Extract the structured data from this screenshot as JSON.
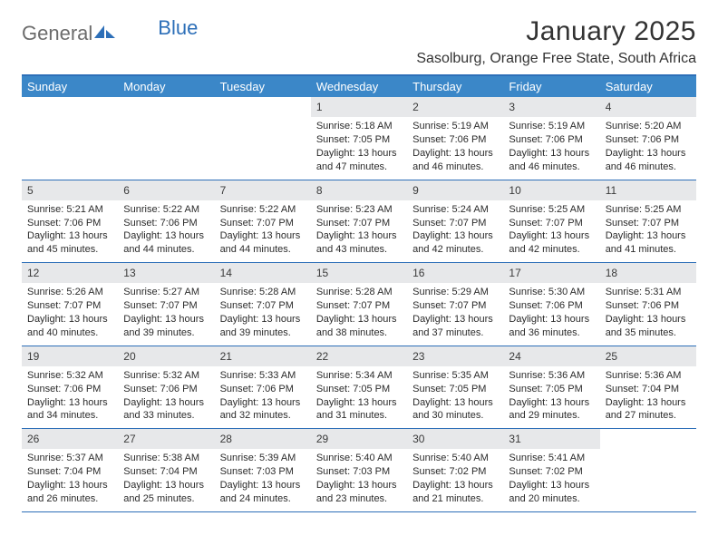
{
  "brand": {
    "textA": "General",
    "textB": "Blue"
  },
  "title": "January 2025",
  "location": "Sasolburg, Orange Free State, South Africa",
  "colors": {
    "header_bar": "#3b87c8",
    "rule": "#2d6fb8",
    "daynum_bg": "#e7e8ea",
    "text": "#333333",
    "logo_gray": "#6c6c6c",
    "logo_blue": "#2d6fb8"
  },
  "dow": [
    "Sunday",
    "Monday",
    "Tuesday",
    "Wednesday",
    "Thursday",
    "Friday",
    "Saturday"
  ],
  "weeks": [
    [
      {
        "n": "",
        "sr": "",
        "ss": "",
        "dl": ""
      },
      {
        "n": "",
        "sr": "",
        "ss": "",
        "dl": ""
      },
      {
        "n": "",
        "sr": "",
        "ss": "",
        "dl": ""
      },
      {
        "n": "1",
        "sr": "Sunrise: 5:18 AM",
        "ss": "Sunset: 7:05 PM",
        "dl": "Daylight: 13 hours and 47 minutes."
      },
      {
        "n": "2",
        "sr": "Sunrise: 5:19 AM",
        "ss": "Sunset: 7:06 PM",
        "dl": "Daylight: 13 hours and 46 minutes."
      },
      {
        "n": "3",
        "sr": "Sunrise: 5:19 AM",
        "ss": "Sunset: 7:06 PM",
        "dl": "Daylight: 13 hours and 46 minutes."
      },
      {
        "n": "4",
        "sr": "Sunrise: 5:20 AM",
        "ss": "Sunset: 7:06 PM",
        "dl": "Daylight: 13 hours and 46 minutes."
      }
    ],
    [
      {
        "n": "5",
        "sr": "Sunrise: 5:21 AM",
        "ss": "Sunset: 7:06 PM",
        "dl": "Daylight: 13 hours and 45 minutes."
      },
      {
        "n": "6",
        "sr": "Sunrise: 5:22 AM",
        "ss": "Sunset: 7:06 PM",
        "dl": "Daylight: 13 hours and 44 minutes."
      },
      {
        "n": "7",
        "sr": "Sunrise: 5:22 AM",
        "ss": "Sunset: 7:07 PM",
        "dl": "Daylight: 13 hours and 44 minutes."
      },
      {
        "n": "8",
        "sr": "Sunrise: 5:23 AM",
        "ss": "Sunset: 7:07 PM",
        "dl": "Daylight: 13 hours and 43 minutes."
      },
      {
        "n": "9",
        "sr": "Sunrise: 5:24 AM",
        "ss": "Sunset: 7:07 PM",
        "dl": "Daylight: 13 hours and 42 minutes."
      },
      {
        "n": "10",
        "sr": "Sunrise: 5:25 AM",
        "ss": "Sunset: 7:07 PM",
        "dl": "Daylight: 13 hours and 42 minutes."
      },
      {
        "n": "11",
        "sr": "Sunrise: 5:25 AM",
        "ss": "Sunset: 7:07 PM",
        "dl": "Daylight: 13 hours and 41 minutes."
      }
    ],
    [
      {
        "n": "12",
        "sr": "Sunrise: 5:26 AM",
        "ss": "Sunset: 7:07 PM",
        "dl": "Daylight: 13 hours and 40 minutes."
      },
      {
        "n": "13",
        "sr": "Sunrise: 5:27 AM",
        "ss": "Sunset: 7:07 PM",
        "dl": "Daylight: 13 hours and 39 minutes."
      },
      {
        "n": "14",
        "sr": "Sunrise: 5:28 AM",
        "ss": "Sunset: 7:07 PM",
        "dl": "Daylight: 13 hours and 39 minutes."
      },
      {
        "n": "15",
        "sr": "Sunrise: 5:28 AM",
        "ss": "Sunset: 7:07 PM",
        "dl": "Daylight: 13 hours and 38 minutes."
      },
      {
        "n": "16",
        "sr": "Sunrise: 5:29 AM",
        "ss": "Sunset: 7:07 PM",
        "dl": "Daylight: 13 hours and 37 minutes."
      },
      {
        "n": "17",
        "sr": "Sunrise: 5:30 AM",
        "ss": "Sunset: 7:06 PM",
        "dl": "Daylight: 13 hours and 36 minutes."
      },
      {
        "n": "18",
        "sr": "Sunrise: 5:31 AM",
        "ss": "Sunset: 7:06 PM",
        "dl": "Daylight: 13 hours and 35 minutes."
      }
    ],
    [
      {
        "n": "19",
        "sr": "Sunrise: 5:32 AM",
        "ss": "Sunset: 7:06 PM",
        "dl": "Daylight: 13 hours and 34 minutes."
      },
      {
        "n": "20",
        "sr": "Sunrise: 5:32 AM",
        "ss": "Sunset: 7:06 PM",
        "dl": "Daylight: 13 hours and 33 minutes."
      },
      {
        "n": "21",
        "sr": "Sunrise: 5:33 AM",
        "ss": "Sunset: 7:06 PM",
        "dl": "Daylight: 13 hours and 32 minutes."
      },
      {
        "n": "22",
        "sr": "Sunrise: 5:34 AM",
        "ss": "Sunset: 7:05 PM",
        "dl": "Daylight: 13 hours and 31 minutes."
      },
      {
        "n": "23",
        "sr": "Sunrise: 5:35 AM",
        "ss": "Sunset: 7:05 PM",
        "dl": "Daylight: 13 hours and 30 minutes."
      },
      {
        "n": "24",
        "sr": "Sunrise: 5:36 AM",
        "ss": "Sunset: 7:05 PM",
        "dl": "Daylight: 13 hours and 29 minutes."
      },
      {
        "n": "25",
        "sr": "Sunrise: 5:36 AM",
        "ss": "Sunset: 7:04 PM",
        "dl": "Daylight: 13 hours and 27 minutes."
      }
    ],
    [
      {
        "n": "26",
        "sr": "Sunrise: 5:37 AM",
        "ss": "Sunset: 7:04 PM",
        "dl": "Daylight: 13 hours and 26 minutes."
      },
      {
        "n": "27",
        "sr": "Sunrise: 5:38 AM",
        "ss": "Sunset: 7:04 PM",
        "dl": "Daylight: 13 hours and 25 minutes."
      },
      {
        "n": "28",
        "sr": "Sunrise: 5:39 AM",
        "ss": "Sunset: 7:03 PM",
        "dl": "Daylight: 13 hours and 24 minutes."
      },
      {
        "n": "29",
        "sr": "Sunrise: 5:40 AM",
        "ss": "Sunset: 7:03 PM",
        "dl": "Daylight: 13 hours and 23 minutes."
      },
      {
        "n": "30",
        "sr": "Sunrise: 5:40 AM",
        "ss": "Sunset: 7:02 PM",
        "dl": "Daylight: 13 hours and 21 minutes."
      },
      {
        "n": "31",
        "sr": "Sunrise: 5:41 AM",
        "ss": "Sunset: 7:02 PM",
        "dl": "Daylight: 13 hours and 20 minutes."
      },
      {
        "n": "",
        "sr": "",
        "ss": "",
        "dl": ""
      }
    ]
  ]
}
